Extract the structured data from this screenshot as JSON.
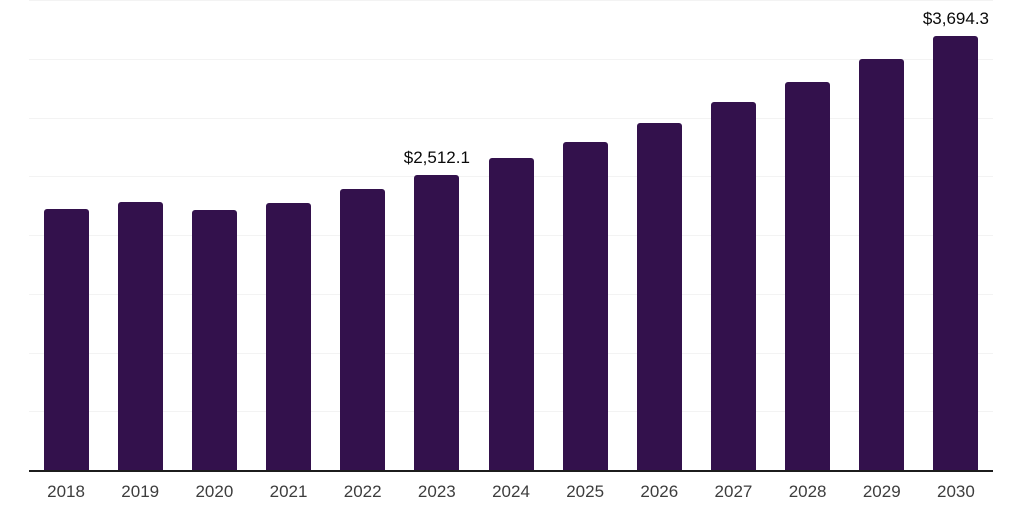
{
  "style": {
    "background_color": "#ffffff",
    "bar_color": "#33114c",
    "gridline_color": "#f3f3f3",
    "axis_line_color": "#1c1c1c",
    "tick_label_color": "#3d3d3d",
    "data_label_color": "#0a0a0a"
  },
  "chart_data": {
    "type": "bar",
    "title": "",
    "xlabel": "",
    "ylabel": "",
    "categories": [
      "2018",
      "2019",
      "2020",
      "2021",
      "2022",
      "2023",
      "2024",
      "2025",
      "2026",
      "2027",
      "2028",
      "2029",
      "2030"
    ],
    "values": [
      2225,
      2280,
      2215,
      2275,
      2390,
      2512.1,
      2655,
      2795,
      2955,
      3130,
      3305,
      3495,
      3694.3
    ],
    "bar_labels": [
      "",
      "",
      "",
      "",
      "",
      "$2,512.1",
      "",
      "",
      "",
      "",
      "",
      "",
      "$3,694.3"
    ],
    "ylim": [
      0,
      4000
    ],
    "gridline_step": 500,
    "grid": "horizontal-faint",
    "legend": "none",
    "y_axis_labels": "none"
  }
}
